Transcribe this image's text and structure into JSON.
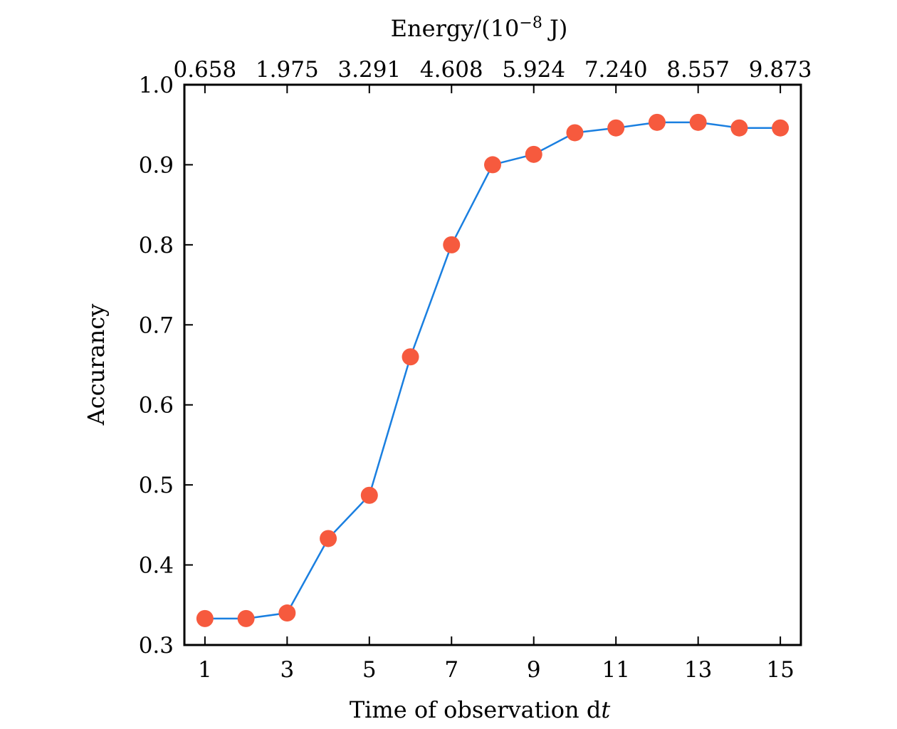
{
  "chart_data": {
    "type": "line",
    "title": "",
    "xlabel": "Time of observation dt",
    "xlabel_parts": {
      "text": "Time of observation d",
      "italic": "t"
    },
    "ylabel": "Accurancy",
    "top_xlabel": "Energy/(10⁻⁸ J)",
    "top_xlabel_parts": {
      "prefix": "Energy/(10",
      "sup": "−8",
      "suffix": " J)"
    },
    "xlim": [
      0.5,
      15.5
    ],
    "ylim": [
      0.3,
      1.0
    ],
    "x_ticks": [
      1,
      3,
      5,
      7,
      9,
      11,
      13,
      15
    ],
    "x_tick_labels": [
      "1",
      "3",
      "5",
      "7",
      "9",
      "11",
      "13",
      "15"
    ],
    "y_ticks": [
      0.3,
      0.4,
      0.5,
      0.6,
      0.7,
      0.8,
      0.9,
      1.0
    ],
    "y_tick_labels": [
      "0.3",
      "0.4",
      "0.5",
      "0.6",
      "0.7",
      "0.8",
      "0.9",
      "1.0"
    ],
    "top_x_ticks": [
      1,
      3,
      5,
      7,
      9,
      11,
      13,
      15
    ],
    "top_x_tick_labels": [
      "0.658",
      "1.975",
      "3.291",
      "4.608",
      "5.924",
      "7.240",
      "8.557",
      "9.873"
    ],
    "grid": false,
    "legend": null,
    "series": [
      {
        "name": "Accurancy",
        "x": [
          1,
          2,
          3,
          4,
          5,
          6,
          7,
          8,
          9,
          10,
          11,
          12,
          13,
          14,
          15
        ],
        "values": [
          0.333,
          0.333,
          0.34,
          0.433,
          0.487,
          0.66,
          0.8,
          0.9,
          0.913,
          0.94,
          0.946,
          0.953,
          0.953,
          0.946,
          0.946
        ],
        "line_color": "#1a7fe0",
        "marker_color": "#f65a3e"
      }
    ]
  }
}
